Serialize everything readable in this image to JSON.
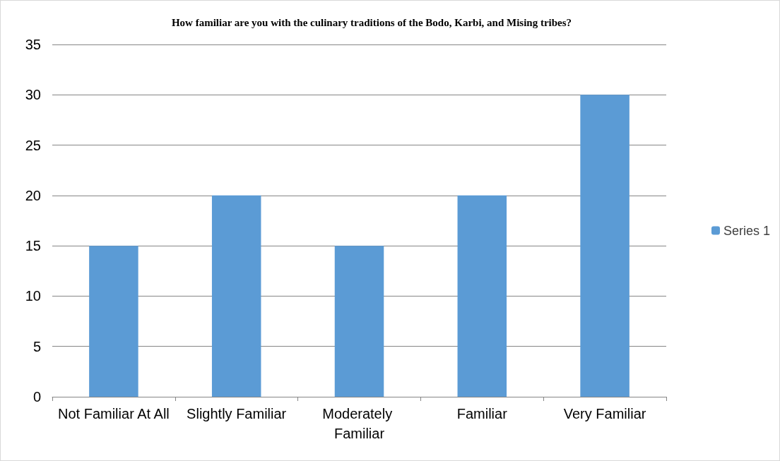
{
  "chart_data": {
    "type": "bar",
    "title": "How familiar are you with the culinary traditions of the Bodo, Karbi, and Mising tribes?",
    "categories": [
      "Not Familiar At All",
      "Slightly Familiar",
      "Moderately Familiar",
      "Familiar",
      "Very Familiar"
    ],
    "series": [
      {
        "name": "Series 1",
        "color": "#5b9bd5",
        "values": [
          15,
          20,
          15,
          20,
          30
        ]
      }
    ],
    "ylim": [
      0,
      35
    ],
    "yticks": [
      0,
      5,
      10,
      15,
      20,
      25,
      30,
      35
    ],
    "grid": "y",
    "legend": "right"
  }
}
